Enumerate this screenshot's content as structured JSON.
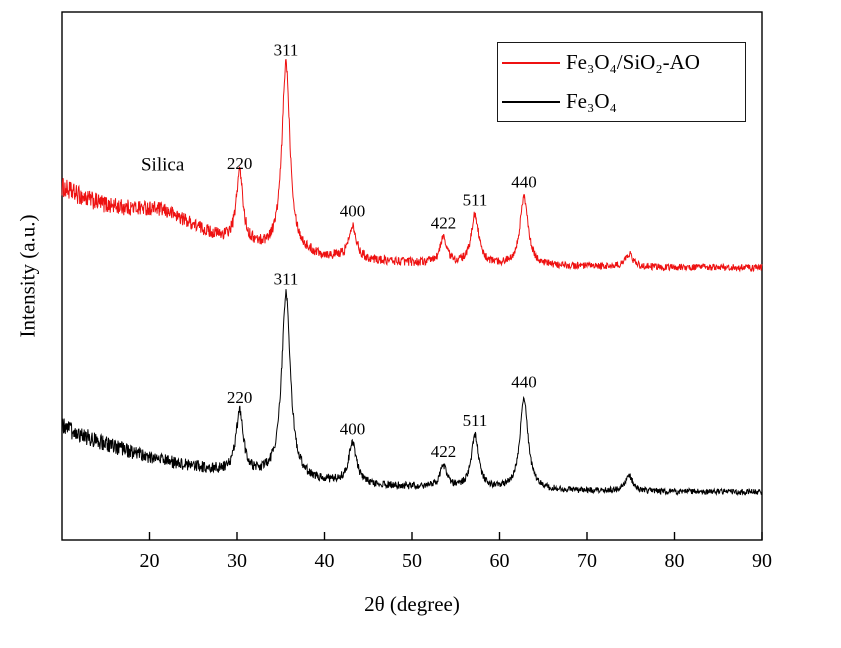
{
  "chart_data": {
    "type": "line",
    "title": "",
    "xlabel": "2θ (degree)",
    "ylabel": "Intensity (a.u.)",
    "xlim": [
      10,
      90
    ],
    "x_ticks": [
      20,
      30,
      40,
      50,
      60,
      70,
      80,
      90
    ],
    "grid": false,
    "legend_position": "top-right",
    "background_color": "#ffffff",
    "axis_color": "#000000",
    "legend": [
      {
        "label": "Fe₃O₄/SiO₂-AO",
        "color": "#ee1111"
      },
      {
        "label": "Fe₃O₄",
        "color": "#000000"
      }
    ],
    "series": [
      {
        "name": "Fe₃O₄/SiO₂-AO",
        "color": "#ee1111",
        "baseline": {
          "start": 0.66,
          "end": 0.515,
          "decay": 14
        },
        "noise": {
          "base": 0.006,
          "left_extra": 0.013,
          "decay": 22
        },
        "hump": {
          "center": 21.5,
          "fwhm": 11,
          "height": 0.045,
          "label": "Silica"
        },
        "peaks": [
          {
            "two_theta": 30.3,
            "height": 0.135,
            "fwhm": 0.9,
            "label": "220"
          },
          {
            "two_theta": 35.6,
            "height": 0.36,
            "fwhm": 1.1,
            "label": "311"
          },
          {
            "two_theta": 43.2,
            "height": 0.065,
            "fwhm": 1.0,
            "label": "400"
          },
          {
            "two_theta": 53.6,
            "height": 0.05,
            "fwhm": 0.9,
            "label": "422"
          },
          {
            "two_theta": 57.2,
            "height": 0.095,
            "fwhm": 1.0,
            "label": "511"
          },
          {
            "two_theta": 62.8,
            "height": 0.13,
            "fwhm": 1.1,
            "label": "440"
          },
          {
            "two_theta": 74.8,
            "height": 0.025,
            "fwhm": 1.0,
            "label": ""
          }
        ]
      },
      {
        "name": "Fe₃O₄",
        "color": "#000000",
        "baseline": {
          "start": 0.215,
          "end": 0.09,
          "decay": 16
        },
        "noise": {
          "base": 0.005,
          "left_extra": 0.012,
          "decay": 22
        },
        "peaks": [
          {
            "two_theta": 30.3,
            "height": 0.115,
            "fwhm": 1.0,
            "label": "220"
          },
          {
            "two_theta": 35.6,
            "height": 0.35,
            "fwhm": 1.2,
            "label": "311"
          },
          {
            "two_theta": 43.2,
            "height": 0.075,
            "fwhm": 1.1,
            "label": "400"
          },
          {
            "two_theta": 53.6,
            "height": 0.04,
            "fwhm": 1.0,
            "label": "422"
          },
          {
            "two_theta": 57.2,
            "height": 0.1,
            "fwhm": 1.0,
            "label": "511"
          },
          {
            "two_theta": 62.8,
            "height": 0.175,
            "fwhm": 1.1,
            "label": "440"
          },
          {
            "two_theta": 74.8,
            "height": 0.03,
            "fwhm": 1.0,
            "label": ""
          }
        ]
      }
    ]
  }
}
